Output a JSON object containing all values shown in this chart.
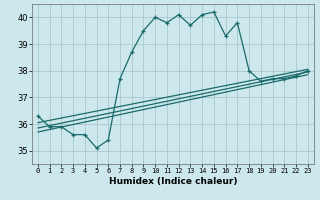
{
  "xlabel": "Humidex (Indice chaleur)",
  "bg_color": "#cde8ec",
  "grid_color": "#aecdd2",
  "line_color": "#1a6b6b",
  "ylim": [
    34.5,
    40.5
  ],
  "xlim": [
    -0.5,
    23.5
  ],
  "yticks": [
    35,
    36,
    37,
    38,
    39,
    40
  ],
  "xticks": [
    0,
    1,
    2,
    3,
    4,
    5,
    6,
    7,
    8,
    9,
    10,
    11,
    12,
    13,
    14,
    15,
    16,
    17,
    18,
    19,
    20,
    21,
    22,
    23
  ],
  "series1_x": [
    0,
    1,
    2,
    3,
    4,
    5,
    6,
    7,
    8,
    9,
    10,
    11,
    12,
    13,
    14,
    15,
    16,
    17,
    18,
    19,
    20,
    21,
    22,
    23
  ],
  "series1_y": [
    36.3,
    35.9,
    35.9,
    35.6,
    35.6,
    35.1,
    35.4,
    37.7,
    38.7,
    39.5,
    40.0,
    39.8,
    40.1,
    39.7,
    40.1,
    40.2,
    39.3,
    39.8,
    38.0,
    37.6,
    37.7,
    37.7,
    37.8,
    38.0
  ],
  "series2_x": [
    0,
    23
  ],
  "series2_y": [
    35.7,
    37.85
  ],
  "series3_x": [
    0,
    23
  ],
  "series3_y": [
    35.85,
    37.95
  ],
  "series4_x": [
    0,
    23
  ],
  "series4_y": [
    36.05,
    38.05
  ]
}
